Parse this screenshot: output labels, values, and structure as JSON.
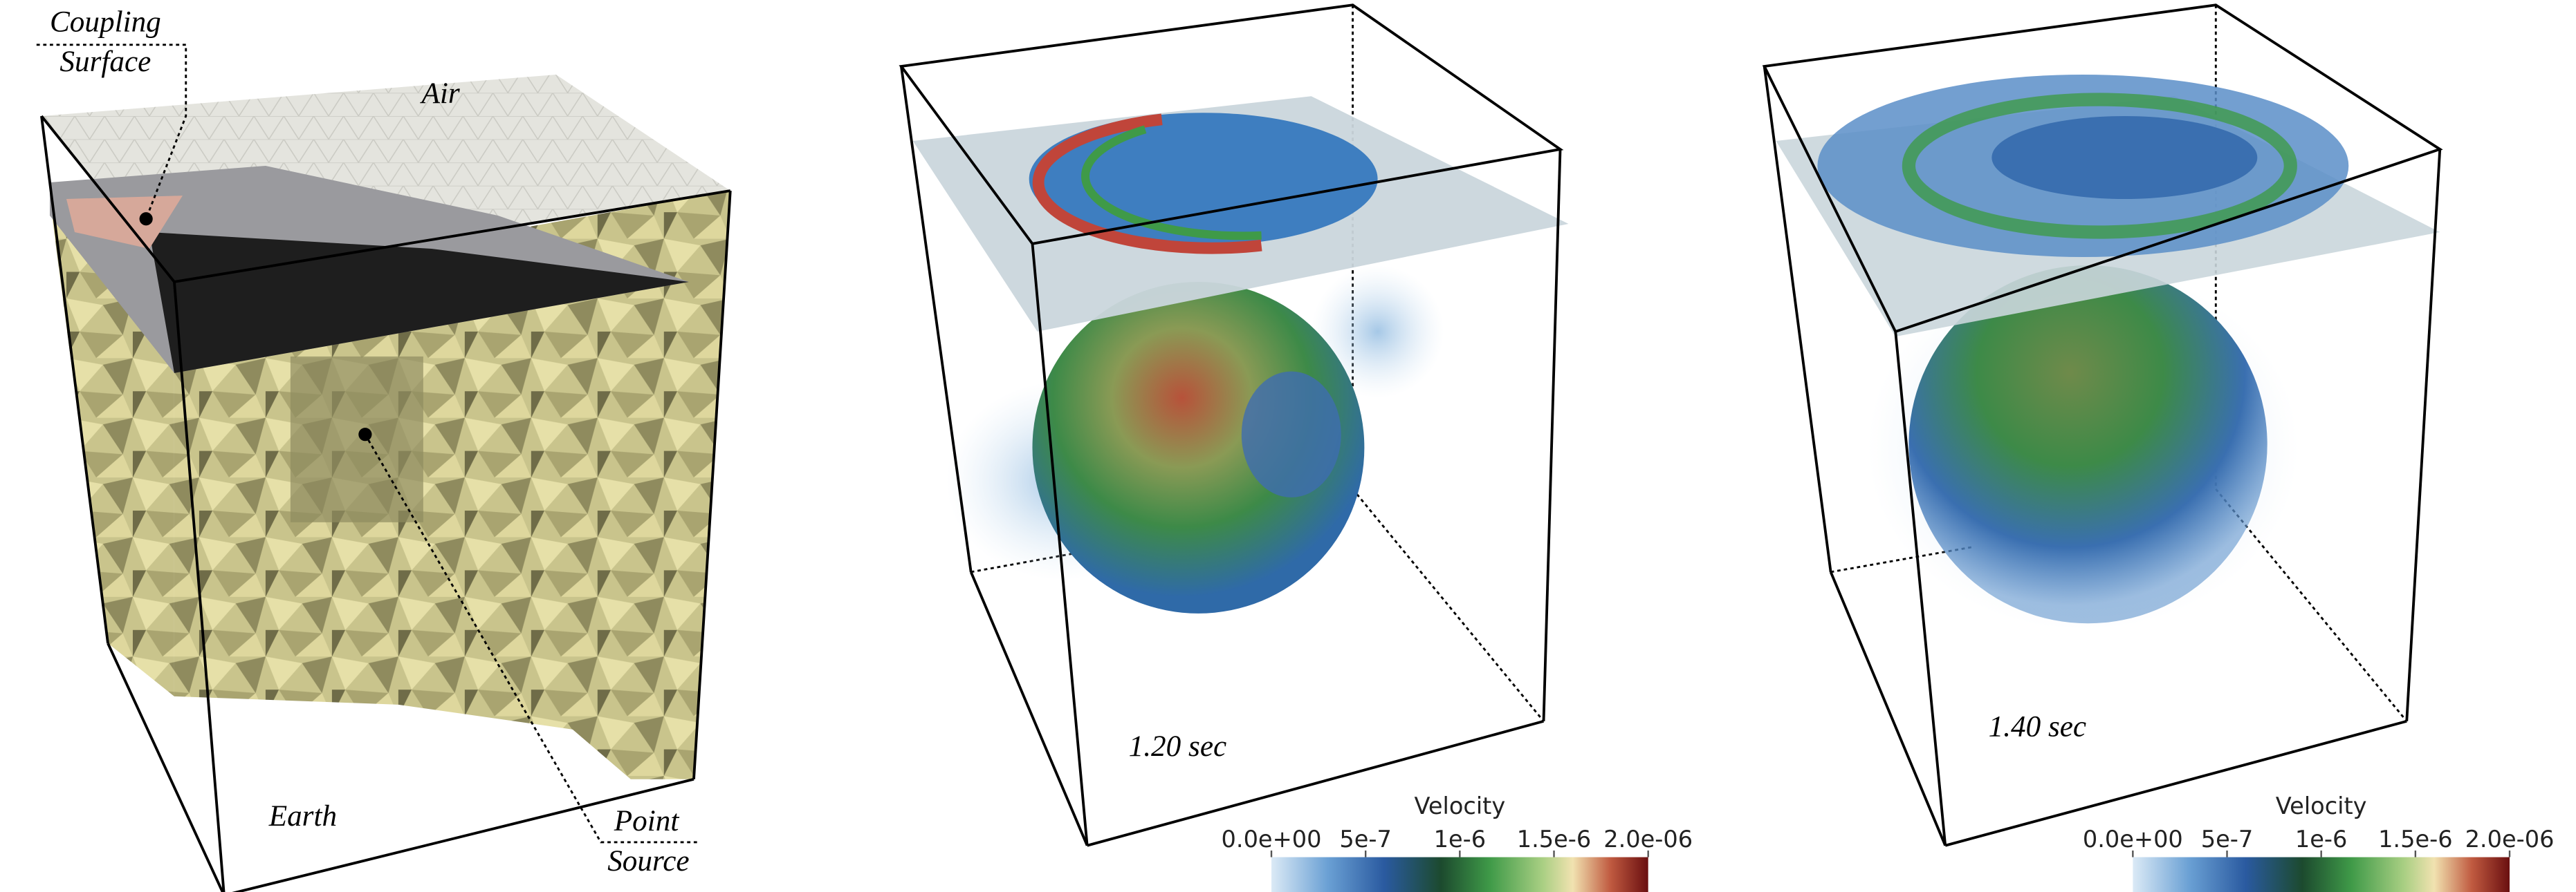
{
  "mesh_panel": {
    "coupling_surface": [
      "Coupling",
      "Surface"
    ],
    "air": "Air",
    "earth": "Earth",
    "point_source": [
      "Point",
      "Source"
    ]
  },
  "snapshots": [
    {
      "time": "1.20 sec"
    },
    {
      "time": "1.40 sec"
    }
  ],
  "colorbar": {
    "title": "Velocity",
    "range": [
      0,
      2e-06
    ],
    "ticks": [
      {
        "value": 0,
        "label": "0.0e+00"
      },
      {
        "value": 5e-07,
        "label": "5e-7"
      },
      {
        "value": 1e-06,
        "label": "1e-6"
      },
      {
        "value": 1.5e-06,
        "label": "1.5e-6"
      },
      {
        "value": 2e-06,
        "label": "2.0e-06"
      }
    ]
  }
}
